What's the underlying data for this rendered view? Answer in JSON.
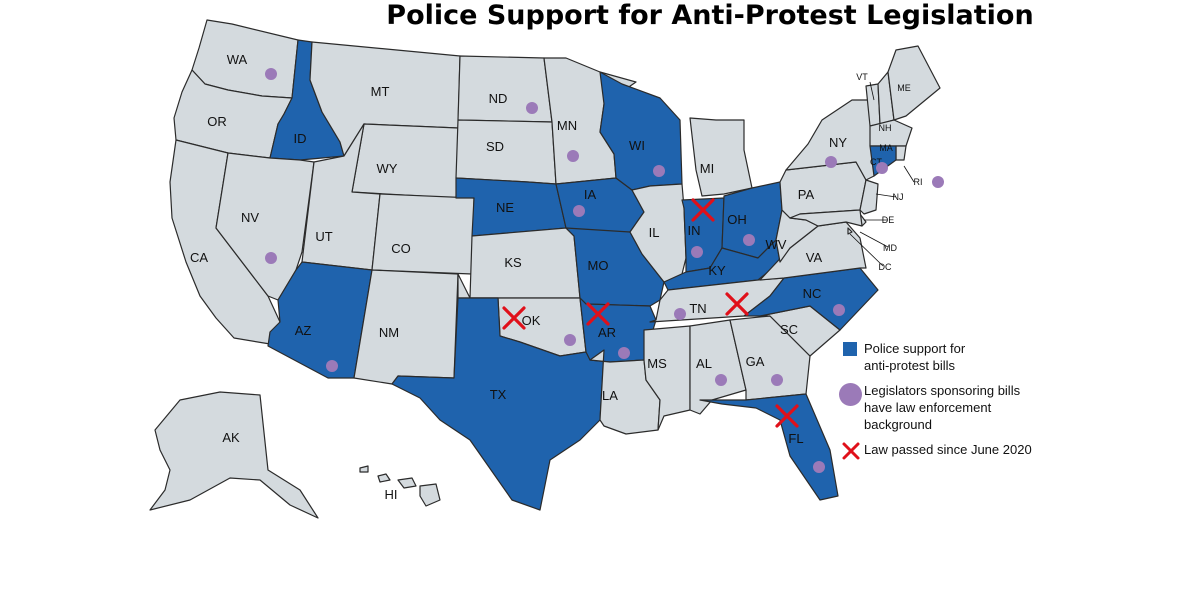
{
  "title": "Police Support for Anti-Protest Legislation",
  "colors": {
    "support": "#1f63ad",
    "default": "#d4dade",
    "border": "#2b2b2b",
    "dot": "#9b7ab8",
    "x": "#e0101a"
  },
  "states": {
    "WA": {
      "label": "WA",
      "support": false,
      "sponsor_dot": true,
      "law_passed": false
    },
    "OR": {
      "label": "OR",
      "support": false,
      "sponsor_dot": false,
      "law_passed": false
    },
    "CA": {
      "label": "CA",
      "support": false,
      "sponsor_dot": false,
      "law_passed": false
    },
    "ID": {
      "label": "ID",
      "support": true,
      "sponsor_dot": false,
      "law_passed": false
    },
    "NV": {
      "label": "NV",
      "support": false,
      "sponsor_dot": true,
      "law_passed": false
    },
    "MT": {
      "label": "MT",
      "support": false,
      "sponsor_dot": false,
      "law_passed": false
    },
    "WY": {
      "label": "WY",
      "support": false,
      "sponsor_dot": false,
      "law_passed": false
    },
    "UT": {
      "label": "UT",
      "support": false,
      "sponsor_dot": false,
      "law_passed": false
    },
    "CO": {
      "label": "CO",
      "support": false,
      "sponsor_dot": false,
      "law_passed": false
    },
    "AZ": {
      "label": "AZ",
      "support": true,
      "sponsor_dot": true,
      "law_passed": false
    },
    "NM": {
      "label": "NM",
      "support": false,
      "sponsor_dot": false,
      "law_passed": false
    },
    "ND": {
      "label": "ND",
      "support": false,
      "sponsor_dot": true,
      "law_passed": false
    },
    "SD": {
      "label": "SD",
      "support": false,
      "sponsor_dot": false,
      "law_passed": false
    },
    "NE": {
      "label": "NE",
      "support": true,
      "sponsor_dot": false,
      "law_passed": false
    },
    "KS": {
      "label": "KS",
      "support": false,
      "sponsor_dot": false,
      "law_passed": false
    },
    "OK": {
      "label": "OK",
      "support": false,
      "sponsor_dot": true,
      "law_passed": true
    },
    "TX": {
      "label": "TX",
      "support": true,
      "sponsor_dot": false,
      "law_passed": false
    },
    "MN": {
      "label": "MN",
      "support": false,
      "sponsor_dot": true,
      "law_passed": false
    },
    "IA": {
      "label": "IA",
      "support": true,
      "sponsor_dot": true,
      "law_passed": false
    },
    "MO": {
      "label": "MO",
      "support": true,
      "sponsor_dot": false,
      "law_passed": false
    },
    "AR": {
      "label": "AR",
      "support": true,
      "sponsor_dot": true,
      "law_passed": true
    },
    "LA": {
      "label": "LA",
      "support": false,
      "sponsor_dot": false,
      "law_passed": false
    },
    "WI": {
      "label": "WI",
      "support": true,
      "sponsor_dot": true,
      "law_passed": false
    },
    "IL": {
      "label": "IL",
      "support": false,
      "sponsor_dot": false,
      "law_passed": false
    },
    "MI": {
      "label": "MI",
      "support": false,
      "sponsor_dot": false,
      "law_passed": false
    },
    "IN": {
      "label": "IN",
      "support": true,
      "sponsor_dot": true,
      "law_passed": true
    },
    "OH": {
      "label": "OH",
      "support": true,
      "sponsor_dot": true,
      "law_passed": false
    },
    "KY": {
      "label": "KY",
      "support": true,
      "sponsor_dot": false,
      "law_passed": false
    },
    "TN": {
      "label": "TN",
      "support": false,
      "sponsor_dot": true,
      "law_passed": true
    },
    "MS": {
      "label": "MS",
      "support": false,
      "sponsor_dot": false,
      "law_passed": false
    },
    "AL": {
      "label": "AL",
      "support": false,
      "sponsor_dot": true,
      "law_passed": false
    },
    "GA": {
      "label": "GA",
      "support": false,
      "sponsor_dot": true,
      "law_passed": false
    },
    "FL": {
      "label": "FL",
      "support": true,
      "sponsor_dot": true,
      "law_passed": true
    },
    "SC": {
      "label": "SC",
      "support": false,
      "sponsor_dot": false,
      "law_passed": false
    },
    "NC": {
      "label": "NC",
      "support": true,
      "sponsor_dot": true,
      "law_passed": false
    },
    "VA": {
      "label": "VA",
      "support": false,
      "sponsor_dot": false,
      "law_passed": false
    },
    "WV": {
      "label": "WV",
      "support": false,
      "sponsor_dot": false,
      "law_passed": false
    },
    "PA": {
      "label": "PA",
      "support": false,
      "sponsor_dot": false,
      "law_passed": false
    },
    "NY": {
      "label": "NY",
      "support": false,
      "sponsor_dot": true,
      "law_passed": false
    },
    "VT": {
      "label": "VT",
      "support": false,
      "sponsor_dot": false,
      "law_passed": false
    },
    "NH": {
      "label": "NH",
      "support": false,
      "sponsor_dot": false,
      "law_passed": false
    },
    "ME": {
      "label": "ME",
      "support": false,
      "sponsor_dot": false,
      "law_passed": false
    },
    "MA": {
      "label": "MA",
      "support": false,
      "sponsor_dot": false,
      "law_passed": false
    },
    "RI": {
      "label": "RI",
      "support": false,
      "sponsor_dot": true,
      "law_passed": false
    },
    "CT": {
      "label": "CT",
      "support": true,
      "sponsor_dot": true,
      "law_passed": false
    },
    "NJ": {
      "label": "NJ",
      "support": false,
      "sponsor_dot": false,
      "law_passed": false
    },
    "DE": {
      "label": "DE",
      "support": false,
      "sponsor_dot": false,
      "law_passed": false
    },
    "MD": {
      "label": "MD",
      "support": false,
      "sponsor_dot": false,
      "law_passed": false
    },
    "DC": {
      "label": "DC",
      "support": false,
      "sponsor_dot": false,
      "law_passed": false
    },
    "AK": {
      "label": "AK",
      "support": false,
      "sponsor_dot": false,
      "law_passed": false
    },
    "HI": {
      "label": "HI",
      "support": false,
      "sponsor_dot": false,
      "law_passed": false
    }
  },
  "legend": {
    "support_label": "Police support for anti-protest bills",
    "sponsor_label": "Legislators sponsoring bills have law enforcement background",
    "law_label": "Law passed since June 2020"
  }
}
